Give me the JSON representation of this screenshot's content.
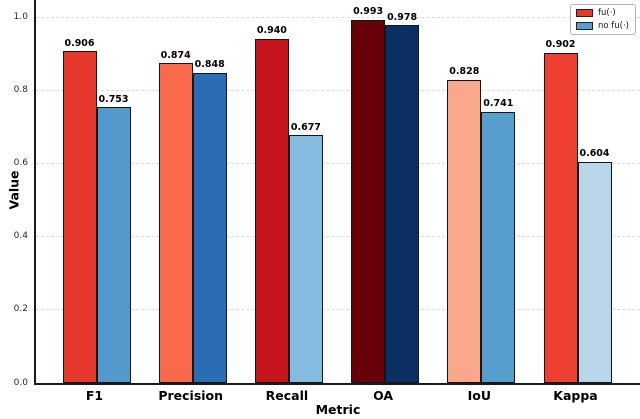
{
  "chart_data": {
    "type": "bar",
    "title": "",
    "xlabel": "Metric",
    "ylabel": "Value",
    "categories": [
      "F1",
      "Precision",
      "Recall",
      "OA",
      "IoU",
      "Kappa"
    ],
    "series": [
      {
        "name": "fu(·)",
        "values": [
          0.906,
          0.874,
          0.94,
          0.993,
          0.828,
          0.902
        ],
        "value_labels": [
          "0.906",
          "0.874",
          "0.940",
          "0.993",
          "0.828",
          "0.902"
        ],
        "bar_colors": [
          "#e6392e",
          "#f96a4c",
          "#c4161c",
          "#670009",
          "#fba78b",
          "#ee4032"
        ],
        "legend_color": "#e6392e"
      },
      {
        "name": "no fu(·)",
        "values": [
          0.753,
          0.848,
          0.677,
          0.978,
          0.741,
          0.604
        ],
        "value_labels": [
          "0.753",
          "0.848",
          "0.677",
          "0.978",
          "0.741",
          "0.604"
        ],
        "bar_colors": [
          "#5499cc",
          "#2a6db5",
          "#85bbde",
          "#0c2f63",
          "#569ecd",
          "#b8d5ea"
        ],
        "legend_color": "#569ecd"
      }
    ],
    "ylim": [
      0.0,
      1.0
    ],
    "yticks": [
      "0.0",
      "0.2",
      "0.4",
      "0.6",
      "0.8",
      "1.0"
    ],
    "grid": {
      "axis": "y",
      "style": "dashed",
      "color": "#dcdcdc"
    },
    "bar_edge_color": "#151515",
    "legend": {
      "position": "upper right",
      "entries": [
        "fu(·)",
        "no fu(·)"
      ]
    }
  }
}
